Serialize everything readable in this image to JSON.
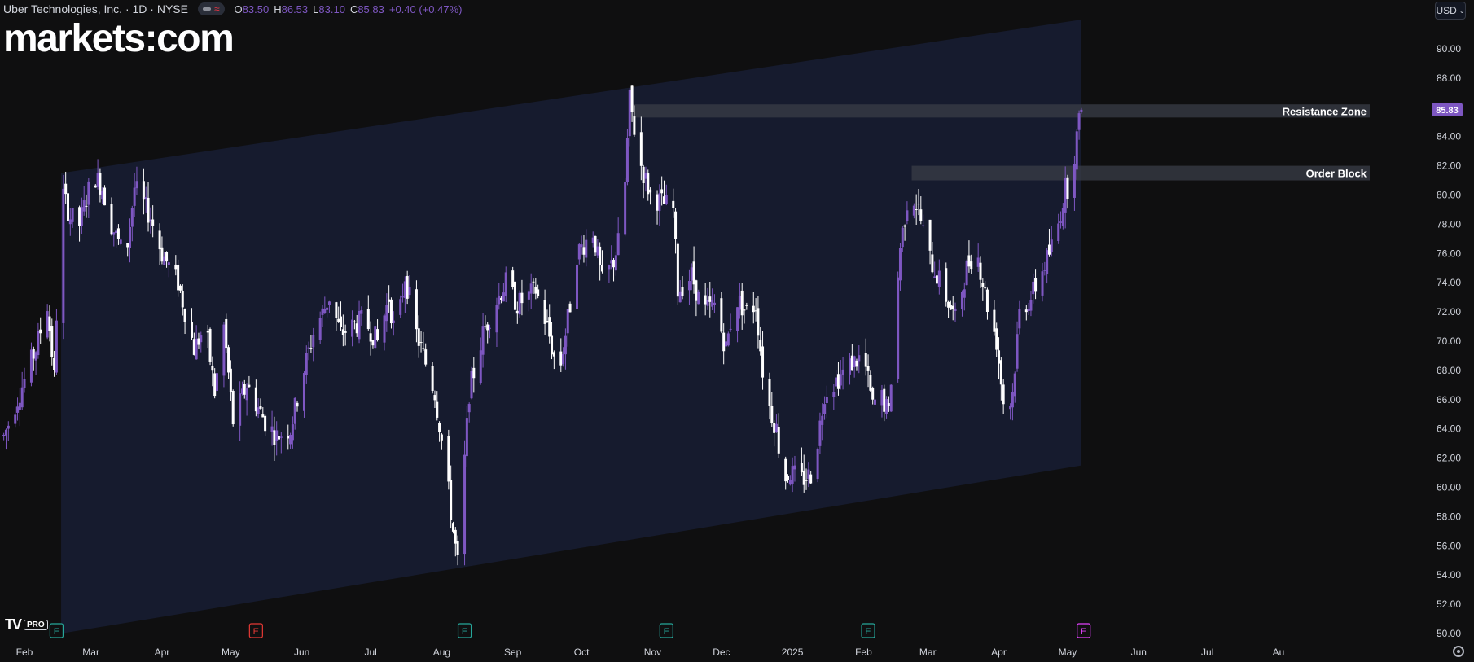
{
  "header": {
    "symbol_title": "Uber Technologies, Inc. · 1D · NYSE",
    "ohlc": [
      {
        "k": "O",
        "v": "83.50"
      },
      {
        "k": "H",
        "v": "86.53"
      },
      {
        "k": "L",
        "v": "83.10"
      },
      {
        "k": "C",
        "v": "85.83"
      },
      {
        "k": "",
        "v": "+0.40 (+0.47%)"
      }
    ],
    "currency": "USD"
  },
  "brand": {
    "logo_text": "markets:com"
  },
  "footer": {
    "tv_mark": "TV",
    "pro_label": "PRO"
  },
  "colors": {
    "bg": "#0f0f10",
    "channel": "#161b2e",
    "bull": "#7e57c2",
    "bear": "#ffffff",
    "zone": "#3a3d47",
    "earn_red": "#e53935",
    "earn_green": "#26a69a",
    "earn_magenta": "#e040fb",
    "price_tag": "#7e57c2"
  },
  "chart_data": {
    "type": "candlestick",
    "title": "Uber Technologies, Inc. · 1D · NYSE",
    "ylim": [
      49.5,
      91.5
    ],
    "y_ticks": [
      "50.00",
      "52.00",
      "54.00",
      "56.00",
      "58.00",
      "60.00",
      "62.00",
      "64.00",
      "66.00",
      "68.00",
      "70.00",
      "72.00",
      "74.00",
      "76.00",
      "78.00",
      "80.00",
      "82.00",
      "84.00",
      "86.00",
      "88.00",
      "90.00"
    ],
    "x_ticks": [
      {
        "label": "Feb",
        "day": -3
      },
      {
        "label": "Mar",
        "day": 26
      },
      {
        "label": "Apr",
        "day": 57
      },
      {
        "label": "May",
        "day": 87
      },
      {
        "label": "Jun",
        "day": 118
      },
      {
        "label": "Jul",
        "day": 148
      },
      {
        "label": "Aug",
        "day": 179
      },
      {
        "label": "Sep",
        "day": 210
      },
      {
        "label": "Oct",
        "day": 240
      },
      {
        "label": "Nov",
        "day": 271
      },
      {
        "label": "Dec",
        "day": 301
      },
      {
        "label": "2025",
        "day": 332
      },
      {
        "label": "Feb",
        "day": 363
      },
      {
        "label": "Mar",
        "day": 391
      },
      {
        "label": "Apr",
        "day": 422
      },
      {
        "label": "May",
        "day": 452
      },
      {
        "label": "Jun",
        "day": 483
      },
      {
        "label": "Jul",
        "day": 513
      },
      {
        "label": "Au",
        "day": 544
      }
    ],
    "x_range_days": [
      -12,
      555
    ],
    "anchors": [
      [
        -12,
        63.5
      ],
      [
        -5,
        66.5
      ],
      [
        2,
        69.5
      ],
      [
        7,
        72.5
      ],
      [
        10,
        67.5
      ],
      [
        13,
        80.5
      ],
      [
        17,
        78.5
      ],
      [
        21,
        78.0
      ],
      [
        27,
        81.5
      ],
      [
        31,
        80.5
      ],
      [
        35,
        78.0
      ],
      [
        41,
        75.5
      ],
      [
        45,
        80.5
      ],
      [
        52,
        78.5
      ],
      [
        57,
        76.0
      ],
      [
        64,
        74.0
      ],
      [
        71,
        69.5
      ],
      [
        76,
        71.0
      ],
      [
        80,
        66.5
      ],
      [
        84,
        71.0
      ],
      [
        88,
        64.5
      ],
      [
        94,
        67.0
      ],
      [
        102,
        64.5
      ],
      [
        107,
        63.5
      ],
      [
        113,
        64.0
      ],
      [
        118,
        67.5
      ],
      [
        123,
        70.5
      ],
      [
        130,
        73.0
      ],
      [
        135,
        70.5
      ],
      [
        145,
        71.5
      ],
      [
        151,
        70.0
      ],
      [
        156,
        73.0
      ],
      [
        159,
        70.0
      ],
      [
        163,
        74.5
      ],
      [
        168,
        70.5
      ],
      [
        176,
        66.5
      ],
      [
        181,
        61.0
      ],
      [
        184,
        57.0
      ],
      [
        186,
        54.8
      ],
      [
        191,
        66.5
      ],
      [
        197,
        70.5
      ],
      [
        202,
        72.5
      ],
      [
        207,
        74.0
      ],
      [
        212,
        72.5
      ],
      [
        220,
        73.5
      ],
      [
        225,
        71.0
      ],
      [
        230,
        67.5
      ],
      [
        235,
        72.5
      ],
      [
        238,
        76.0
      ],
      [
        245,
        77.5
      ],
      [
        249,
        74.0
      ],
      [
        254,
        75.5
      ],
      [
        258,
        78.0
      ],
      [
        261,
        86.5
      ],
      [
        263,
        84.5
      ],
      [
        266,
        82.0
      ],
      [
        270,
        80.0
      ],
      [
        275,
        79.5
      ],
      [
        280,
        79.0
      ],
      [
        282,
        73.5
      ],
      [
        288,
        74.5
      ],
      [
        293,
        72.0
      ],
      [
        298,
        72.5
      ],
      [
        303,
        69.5
      ],
      [
        307,
        73.0
      ],
      [
        312,
        72.0
      ],
      [
        316,
        72.5
      ],
      [
        320,
        66.5
      ],
      [
        325,
        64.0
      ],
      [
        328,
        60.5
      ],
      [
        331,
        61.0
      ],
      [
        336,
        60.5
      ],
      [
        341,
        61.0
      ],
      [
        346,
        66.5
      ],
      [
        352,
        67.5
      ],
      [
        358,
        68.5
      ],
      [
        363,
        69.0
      ],
      [
        367,
        65.5
      ],
      [
        370,
        66.5
      ],
      [
        374,
        65.0
      ],
      [
        376,
        70.0
      ],
      [
        379,
        76.5
      ],
      [
        383,
        80.5
      ],
      [
        387,
        79.0
      ],
      [
        391,
        76.0
      ],
      [
        395,
        74.5
      ],
      [
        399,
        73.0
      ],
      [
        403,
        71.5
      ],
      [
        408,
        75.0
      ],
      [
        412,
        76.5
      ],
      [
        417,
        72.5
      ],
      [
        421,
        70.0
      ],
      [
        425,
        64.5
      ],
      [
        428,
        66.5
      ],
      [
        431,
        72.0
      ],
      [
        436,
        73.0
      ],
      [
        440,
        74.5
      ],
      [
        444,
        76.0
      ],
      [
        448,
        78.0
      ],
      [
        451,
        80.5
      ],
      [
        453,
        80.5
      ],
      [
        456,
        84.0
      ],
      [
        458,
        85.83
      ]
    ],
    "channel_band": {
      "x_start_day": 13,
      "x_end_day": 458,
      "upper_start": 81.5,
      "upper_end": 92.0,
      "lower_start": 50.0,
      "lower_end": 61.5
    },
    "resistance_zone": {
      "label": "Resistance Zone",
      "from_day": 262,
      "to": 86.2,
      "from": 85.3
    },
    "order_block": {
      "label": "Order Block",
      "from_day": 384,
      "to": 82.0,
      "from": 81.0
    },
    "earnings_markers": [
      {
        "day": 11,
        "label": "E",
        "color": "#26a69a"
      },
      {
        "day": 98,
        "label": "E",
        "color": "#e53935"
      },
      {
        "day": 189,
        "label": "E",
        "color": "#26a69a"
      },
      {
        "day": 277,
        "label": "E",
        "color": "#26a69a"
      },
      {
        "day": 365,
        "label": "E",
        "color": "#26a69a"
      },
      {
        "day": 459,
        "label": "E",
        "color": "#e040fb"
      }
    ],
    "last_price": "85.83",
    "last_value": 85.83
  }
}
